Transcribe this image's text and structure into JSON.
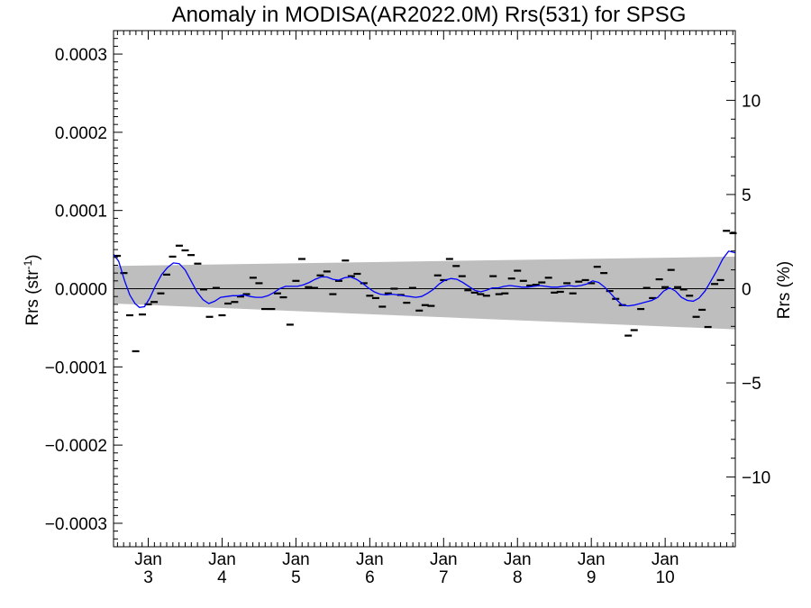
{
  "chart_data": {
    "type": "line",
    "title": "Anomaly in MODISA(AR2022.0M) Rrs(531) for SPSG",
    "ylabel_left_base": "Rrs (str",
    "ylabel_left_sup": "-1",
    "ylabel_left_end": ")",
    "ylabel_right": "Rrs (%)",
    "x_ticks": [
      {
        "x": 2003.0,
        "top": "Jan",
        "bottom": "3"
      },
      {
        "x": 2004.0,
        "top": "Jan",
        "bottom": "4"
      },
      {
        "x": 2005.0,
        "top": "Jan",
        "bottom": "5"
      },
      {
        "x": 2006.0,
        "top": "Jan",
        "bottom": "6"
      },
      {
        "x": 2007.0,
        "top": "Jan",
        "bottom": "7"
      },
      {
        "x": 2008.0,
        "top": "Jan",
        "bottom": "8"
      },
      {
        "x": 2009.0,
        "top": "Jan",
        "bottom": "9"
      },
      {
        "x": 2010.0,
        "top": "Jan",
        "bottom": "10"
      }
    ],
    "xlim": [
      2002.53,
      2010.95
    ],
    "ylim": [
      -0.00033,
      0.00033
    ],
    "y_ticks_left": [
      {
        "v": 0.0003,
        "label": "0.0003"
      },
      {
        "v": 0.0002,
        "label": "0.0002"
      },
      {
        "v": 0.0001,
        "label": "0.0001"
      },
      {
        "v": 0.0,
        "label": "0.0000"
      },
      {
        "v": -0.0001,
        "label": "−0.0001"
      },
      {
        "v": -0.0002,
        "label": "−0.0002"
      },
      {
        "v": -0.0003,
        "label": "−0.0003"
      }
    ],
    "ylim_right": [
      -13.7,
      13.7
    ],
    "y_ticks_right": [
      {
        "v": 10,
        "label": "10"
      },
      {
        "v": 5,
        "label": "5"
      },
      {
        "v": 0,
        "label": "0"
      },
      {
        "v": -5,
        "label": "−5"
      },
      {
        "v": -10,
        "label": "−10"
      }
    ],
    "zero_line": 0,
    "band": {
      "x": [
        2002.53,
        2010.95
      ],
      "upper": [
        2.9e-05,
        4.1e-05
      ],
      "lower": [
        -1.9e-05,
        -5.2e-05
      ]
    },
    "series": [
      {
        "style": "dash-markers",
        "color": "#000000",
        "points": [
          [
            2002.58,
            4.2e-05
          ],
          [
            2002.67,
            2e-05
          ],
          [
            2002.75,
            -3.4e-05
          ],
          [
            2002.83,
            -8e-05
          ],
          [
            2002.92,
            -3.3e-05
          ],
          [
            2003.0,
            -2e-05
          ],
          [
            2003.08,
            -1.7e-05
          ],
          [
            2003.17,
            -6e-06
          ],
          [
            2003.25,
            1.8e-05
          ],
          [
            2003.33,
            4.1e-05
          ],
          [
            2003.42,
            5.5e-05
          ],
          [
            2003.5,
            4.9e-05
          ],
          [
            2003.58,
            4.3e-05
          ],
          [
            2003.67,
            3.2e-05
          ],
          [
            2003.75,
            -1e-06
          ],
          [
            2003.83,
            -3.6e-05
          ],
          [
            2003.92,
            1e-06
          ],
          [
            2004.0,
            -3.4e-05
          ],
          [
            2004.08,
            -1.9e-05
          ],
          [
            2004.17,
            -1.7e-05
          ],
          [
            2004.25,
            -1e-05
          ],
          [
            2004.33,
            -7e-06
          ],
          [
            2004.42,
            1.4e-05
          ],
          [
            2004.5,
            7e-06
          ],
          [
            2004.58,
            -2.6e-05
          ],
          [
            2004.67,
            -2.6e-05
          ],
          [
            2004.75,
            -6e-06
          ],
          [
            2004.83,
            -1.1e-05
          ],
          [
            2004.92,
            -4.6e-05
          ],
          [
            2005.0,
            1e-05
          ],
          [
            2005.08,
            3.8e-05
          ],
          [
            2005.17,
            2e-06
          ],
          [
            2005.25,
            1e-06
          ],
          [
            2005.33,
            1.7e-05
          ],
          [
            2005.42,
            2.2e-05
          ],
          [
            2005.5,
            -7e-06
          ],
          [
            2005.58,
            1e-05
          ],
          [
            2005.67,
            3.6e-05
          ],
          [
            2005.75,
            1.6e-05
          ],
          [
            2005.83,
            1.9e-05
          ],
          [
            2005.92,
            7e-06
          ],
          [
            2006.0,
            -9e-06
          ],
          [
            2006.08,
            -1.2e-05
          ],
          [
            2006.17,
            -2.3e-05
          ],
          [
            2006.25,
            -6e-06
          ],
          [
            2006.33,
            0.0
          ],
          [
            2006.42,
            -8e-06
          ],
          [
            2006.5,
            -1.8e-05
          ],
          [
            2006.58,
            1e-06
          ],
          [
            2006.67,
            -2.8e-05
          ],
          [
            2006.75,
            -2.1e-05
          ],
          [
            2006.83,
            -2.2e-05
          ],
          [
            2006.92,
            1.7e-05
          ],
          [
            2007.0,
            1.1e-05
          ],
          [
            2007.08,
            3.8e-05
          ],
          [
            2007.17,
            2.9e-05
          ],
          [
            2007.25,
            1.6e-05
          ],
          [
            2007.33,
            -2e-06
          ],
          [
            2007.42,
            -5e-06
          ],
          [
            2007.5,
            -7e-06
          ],
          [
            2007.58,
            -9e-06
          ],
          [
            2007.67,
            1.6e-05
          ],
          [
            2007.75,
            -7e-06
          ],
          [
            2007.83,
            -6e-06
          ],
          [
            2007.92,
            1.3e-05
          ],
          [
            2008.0,
            2.3e-05
          ],
          [
            2008.08,
            1e-05
          ],
          [
            2008.17,
            4e-06
          ],
          [
            2008.25,
            5e-06
          ],
          [
            2008.33,
            8e-06
          ],
          [
            2008.42,
            1.4e-05
          ],
          [
            2008.5,
            -5e-06
          ],
          [
            2008.58,
            -4e-06
          ],
          [
            2008.67,
            7e-06
          ],
          [
            2008.75,
            -6e-06
          ],
          [
            2008.83,
            9e-06
          ],
          [
            2008.92,
            1.1e-05
          ],
          [
            2009.0,
            7e-06
          ],
          [
            2009.08,
            2.8e-05
          ],
          [
            2009.17,
            2e-05
          ],
          [
            2009.25,
            -3e-06
          ],
          [
            2009.33,
            -1.3e-05
          ],
          [
            2009.42,
            -2.1e-05
          ],
          [
            2009.5,
            -6e-05
          ],
          [
            2009.58,
            -5.3e-05
          ],
          [
            2009.67,
            -2.6e-05
          ],
          [
            2009.75,
            1e-06
          ],
          [
            2009.83,
            -1.2e-05
          ],
          [
            2009.92,
            1.2e-05
          ],
          [
            2010.0,
            2e-06
          ],
          [
            2010.08,
            2.4e-05
          ],
          [
            2010.17,
            2e-06
          ],
          [
            2010.25,
            -1e-06
          ],
          [
            2010.33,
            -9e-06
          ],
          [
            2010.42,
            -3.6e-05
          ],
          [
            2010.5,
            -2.7e-05
          ],
          [
            2010.58,
            -4.9e-05
          ],
          [
            2010.67,
            6e-06
          ],
          [
            2010.75,
            1.1e-05
          ],
          [
            2010.83,
            7.4e-05
          ],
          [
            2010.92,
            7.1e-05
          ]
        ]
      },
      {
        "style": "line",
        "color": "#0000ff",
        "points": [
          [
            2002.53,
            4.4e-05
          ],
          [
            2002.6,
            3.5e-05
          ],
          [
            2002.68,
            1e-05
          ],
          [
            2002.75,
            -8e-06
          ],
          [
            2002.82,
            -1.9e-05
          ],
          [
            2002.88,
            -2.4e-05
          ],
          [
            2002.95,
            -2.3e-05
          ],
          [
            2003.02,
            -1.2e-05
          ],
          [
            2003.1,
            4e-06
          ],
          [
            2003.18,
            1.8e-05
          ],
          [
            2003.26,
            2.7e-05
          ],
          [
            2003.34,
            3.3e-05
          ],
          [
            2003.42,
            3.2e-05
          ],
          [
            2003.5,
            2.4e-05
          ],
          [
            2003.58,
            1e-05
          ],
          [
            2003.66,
            -4e-06
          ],
          [
            2003.74,
            -1.4e-05
          ],
          [
            2003.82,
            -1.9e-05
          ],
          [
            2003.9,
            -1.6e-05
          ],
          [
            2003.98,
            -1.1e-05
          ],
          [
            2004.06,
            -1e-05
          ],
          [
            2004.14,
            -9e-06
          ],
          [
            2004.22,
            -9e-06
          ],
          [
            2004.3,
            -8e-06
          ],
          [
            2004.38,
            -1e-05
          ],
          [
            2004.46,
            -1.1e-05
          ],
          [
            2004.54,
            -1.1e-05
          ],
          [
            2004.62,
            -9e-06
          ],
          [
            2004.7,
            -5e-06
          ],
          [
            2004.78,
            0.0
          ],
          [
            2004.86,
            3e-06
          ],
          [
            2004.94,
            3e-06
          ],
          [
            2005.02,
            3e-06
          ],
          [
            2005.1,
            5e-06
          ],
          [
            2005.18,
            8e-06
          ],
          [
            2005.26,
            1.2e-05
          ],
          [
            2005.34,
            1.5e-05
          ],
          [
            2005.42,
            1.5e-05
          ],
          [
            2005.5,
            1.2e-05
          ],
          [
            2005.58,
            1.1e-05
          ],
          [
            2005.66,
            1.4e-05
          ],
          [
            2005.74,
            1.5e-05
          ],
          [
            2005.82,
            1.2e-05
          ],
          [
            2005.9,
            7e-06
          ],
          [
            2005.98,
            1e-06
          ],
          [
            2006.06,
            -4e-06
          ],
          [
            2006.14,
            -7e-06
          ],
          [
            2006.22,
            -8e-06
          ],
          [
            2006.3,
            -7e-06
          ],
          [
            2006.38,
            -8e-06
          ],
          [
            2006.46,
            -9e-06
          ],
          [
            2006.54,
            -1e-05
          ],
          [
            2006.62,
            -1.1e-05
          ],
          [
            2006.7,
            -1e-05
          ],
          [
            2006.78,
            -6e-06
          ],
          [
            2006.86,
            -1e-06
          ],
          [
            2006.94,
            6e-06
          ],
          [
            2007.02,
            1.1e-05
          ],
          [
            2007.1,
            1.3e-05
          ],
          [
            2007.18,
            1.2e-05
          ],
          [
            2007.26,
            8e-06
          ],
          [
            2007.34,
            3e-06
          ],
          [
            2007.42,
            -2e-06
          ],
          [
            2007.5,
            -4e-06
          ],
          [
            2007.58,
            -2e-06
          ],
          [
            2007.66,
            1e-06
          ],
          [
            2007.74,
            1e-06
          ],
          [
            2007.82,
            3e-06
          ],
          [
            2007.9,
            4e-06
          ],
          [
            2007.98,
            3e-06
          ],
          [
            2008.06,
            2e-06
          ],
          [
            2008.14,
            2e-06
          ],
          [
            2008.22,
            3e-06
          ],
          [
            2008.3,
            4e-06
          ],
          [
            2008.38,
            3e-06
          ],
          [
            2008.46,
            2e-06
          ],
          [
            2008.54,
            2e-06
          ],
          [
            2008.62,
            3e-06
          ],
          [
            2008.7,
            4e-06
          ],
          [
            2008.78,
            3e-06
          ],
          [
            2008.86,
            4e-06
          ],
          [
            2008.94,
            6e-06
          ],
          [
            2009.02,
            1e-05
          ],
          [
            2009.1,
            8e-06
          ],
          [
            2009.18,
            2e-06
          ],
          [
            2009.26,
            -6e-06
          ],
          [
            2009.34,
            -1.4e-05
          ],
          [
            2009.42,
            -2.1e-05
          ],
          [
            2009.5,
            -2.2e-05
          ],
          [
            2009.58,
            -2.1e-05
          ],
          [
            2009.66,
            -1.9e-05
          ],
          [
            2009.74,
            -1.7e-05
          ],
          [
            2009.82,
            -1.5e-05
          ],
          [
            2009.9,
            -1.1e-05
          ],
          [
            2009.98,
            -3e-06
          ],
          [
            2010.06,
            1e-06
          ],
          [
            2010.14,
            -3e-06
          ],
          [
            2010.22,
            -1.1e-05
          ],
          [
            2010.3,
            -1.5e-05
          ],
          [
            2010.38,
            -1.6e-05
          ],
          [
            2010.46,
            -1.2e-05
          ],
          [
            2010.54,
            -3e-06
          ],
          [
            2010.62,
            1e-05
          ],
          [
            2010.7,
            2.3e-05
          ],
          [
            2010.78,
            3.8e-05
          ],
          [
            2010.86,
            4.8e-05
          ],
          [
            2010.95,
            4.6e-05
          ]
        ]
      }
    ]
  }
}
